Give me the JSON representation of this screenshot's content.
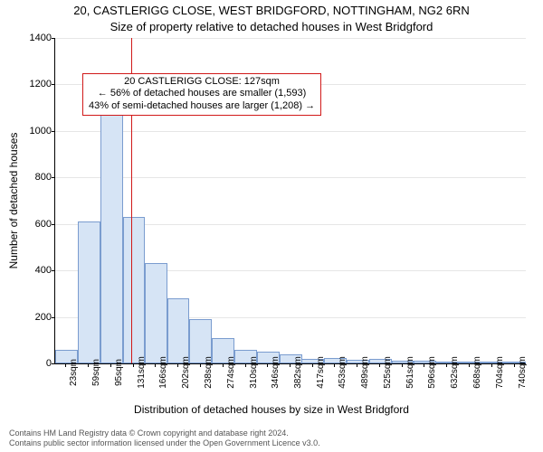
{
  "chart": {
    "type": "histogram",
    "title_line1": "20, CASTLERIGG CLOSE, WEST BRIDGFORD, NOTTINGHAM, NG2 6RN",
    "title_line2": "Size of property relative to detached houses in West Bridgford",
    "title_fontsize": 13,
    "ylabel": "Number of detached houses",
    "xlabel": "Distribution of detached houses by size in West Bridgford",
    "label_fontsize": 12,
    "background_color": "#ffffff",
    "grid_color": "#e6e6e6",
    "bar_fill": "#d6e4f5",
    "bar_stroke": "#7a9ccf",
    "refline_color": "#d11919",
    "axis_color": "#000000",
    "ylim": [
      0,
      1400
    ],
    "ytick_step": 200,
    "yticks": [
      0,
      200,
      400,
      600,
      800,
      1000,
      1200,
      1400
    ],
    "x_categories": [
      "23sqm",
      "59sqm",
      "95sqm",
      "131sqm",
      "166sqm",
      "202sqm",
      "238sqm",
      "274sqm",
      "310sqm",
      "346sqm",
      "382sqm",
      "417sqm",
      "453sqm",
      "489sqm",
      "525sqm",
      "561sqm",
      "596sqm",
      "632sqm",
      "668sqm",
      "704sqm",
      "740sqm"
    ],
    "x_values_numeric": [
      23,
      59,
      95,
      131,
      166,
      202,
      238,
      274,
      310,
      346,
      382,
      417,
      453,
      489,
      525,
      561,
      596,
      632,
      668,
      704,
      740
    ],
    "xlim": [
      5,
      758
    ],
    "bar_width_sqm": 36,
    "values": [
      60,
      610,
      1085,
      630,
      430,
      280,
      190,
      110,
      60,
      50,
      40,
      20,
      25,
      15,
      18,
      12,
      10,
      8,
      8,
      5,
      5
    ],
    "reference_value_sqm": 127,
    "annotation": {
      "line1": "20 CASTLERIGG CLOSE: 127sqm",
      "line2": "← 56% of detached houses are smaller (1,593)",
      "line3": "43% of semi-detached houses are larger (1,208) →",
      "border_color": "#d11919",
      "fontsize": 11,
      "y_at": 1250
    },
    "tick_label_fontsize": 11
  },
  "footer": {
    "line1": "Contains HM Land Registry data © Crown copyright and database right 2024.",
    "line2": "Contains public sector information licensed under the Open Government Licence v3.0.",
    "color": "#555555",
    "fontsize": 9
  }
}
